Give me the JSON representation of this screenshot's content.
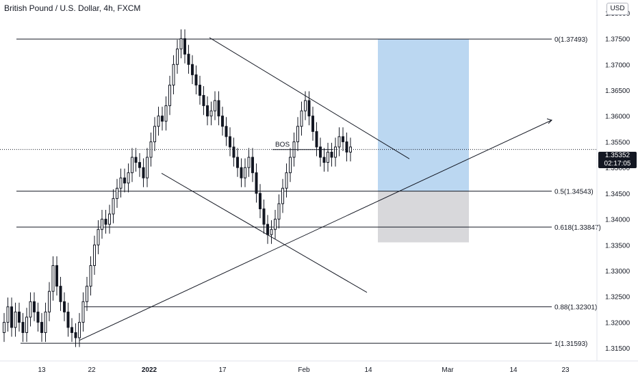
{
  "header": {
    "symbol_title": "British Pound / U.S. Dollar, 4h, FXCM",
    "currency": "USD"
  },
  "last_price": {
    "price": "1.35352",
    "countdown": "02:17:05"
  },
  "chart_data": {
    "type": "candlestick",
    "ylim": [
      1.3125,
      1.3825
    ],
    "y_ticks": [
      "1.38000",
      "1.37500",
      "1.37000",
      "1.36500",
      "1.36000",
      "1.35500",
      "1.35000",
      "1.34500",
      "1.34000",
      "1.33500",
      "1.33000",
      "1.32500",
      "1.32000",
      "1.31500"
    ],
    "x_ticks": [
      "13",
      "22",
      "2022",
      "17",
      "Feb",
      "14",
      "Mar",
      "14",
      "23"
    ],
    "grid": false,
    "fib_levels": [
      {
        "label": "0(1.37493)",
        "price": 1.37493
      },
      {
        "label": "0.5(1.34543)",
        "price": 1.34543
      },
      {
        "label": "0.618(1.33847)",
        "price": 1.33847
      },
      {
        "label": "0.88(1.32301)",
        "price": 1.32301
      },
      {
        "label": "1(1.31593)",
        "price": 1.31593
      }
    ],
    "annotations": [
      {
        "text": "BOS",
        "price": 1.3535
      }
    ],
    "position_tool": {
      "entry": 1.34543,
      "target": 1.37493,
      "stop": 1.3355
    },
    "last_price": 1.35352,
    "price_path": [
      1.32,
      1.323,
      1.319,
      1.322,
      1.32,
      1.318,
      1.321,
      1.324,
      1.322,
      1.32,
      1.318,
      1.322,
      1.326,
      1.331,
      1.327,
      1.324,
      1.322,
      1.319,
      1.318,
      1.317,
      1.32,
      1.324,
      1.327,
      1.331,
      1.335,
      1.338,
      1.34,
      1.339,
      1.341,
      1.344,
      1.346,
      1.348,
      1.347,
      1.349,
      1.352,
      1.351,
      1.35,
      1.348,
      1.352,
      1.355,
      1.358,
      1.36,
      1.359,
      1.362,
      1.366,
      1.37,
      1.373,
      1.375,
      1.372,
      1.37,
      1.368,
      1.366,
      1.364,
      1.362,
      1.36,
      1.361,
      1.363,
      1.36,
      1.358,
      1.356,
      1.354,
      1.352,
      1.35,
      1.348,
      1.35,
      1.352,
      1.349,
      1.345,
      1.342,
      1.339,
      1.337,
      1.338,
      1.34,
      1.343,
      1.346,
      1.349,
      1.352,
      1.355,
      1.358,
      1.361,
      1.363,
      1.36,
      1.357,
      1.354,
      1.352,
      1.351,
      1.353,
      1.352,
      1.354,
      1.356,
      1.355,
      1.353,
      1.354
    ]
  }
}
